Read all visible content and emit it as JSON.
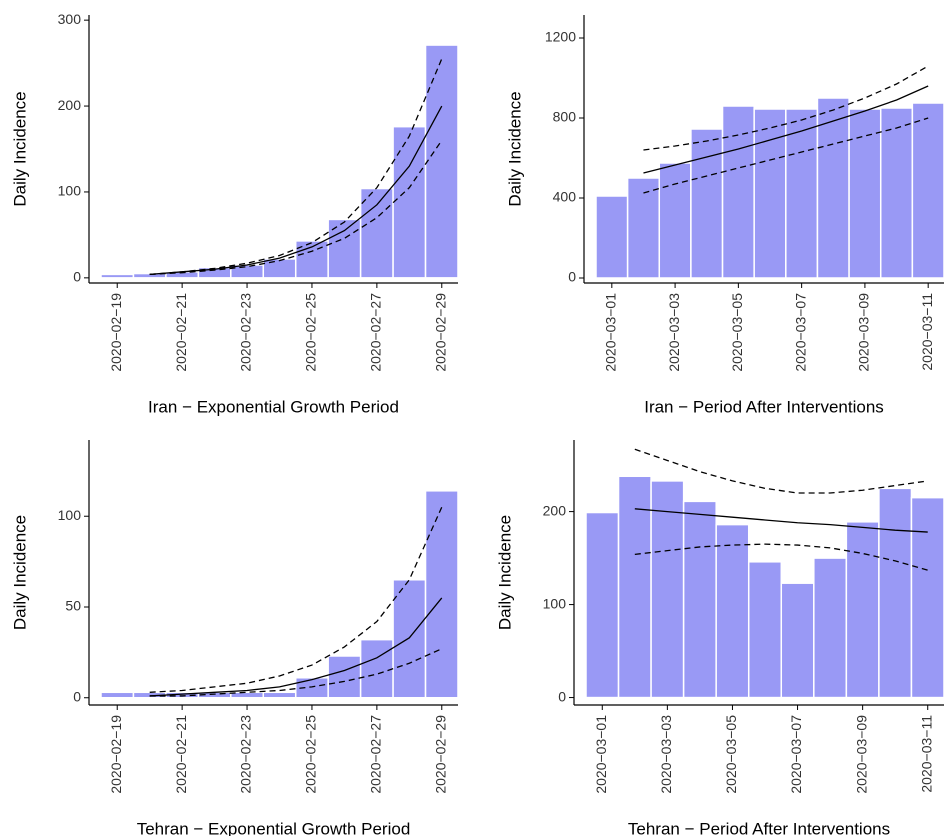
{
  "chart_data": [
    {
      "type": "bar",
      "x_label": "Iran − Exponential Growth Period",
      "y_label": "Daily Incidence",
      "categories": [
        "2020−02−19",
        null,
        "2020−02−21",
        null,
        "2020−02−23",
        null,
        "2020−02−25",
        null,
        "2020−02−27",
        null,
        "2020−02−29"
      ],
      "values": [
        4,
        5,
        7,
        12,
        15,
        22,
        43,
        68,
        104,
        176,
        271
      ],
      "color": "#9999f5",
      "lines": [
        {
          "values": [
            null,
            4,
            7,
            10,
            15,
            23,
            36,
            55,
            85,
            130,
            200
          ],
          "dashed": false
        },
        {
          "values": [
            null,
            4,
            7,
            11,
            17,
            26,
            41,
            65,
            105,
            165,
            255
          ],
          "dashed": true
        },
        {
          "values": [
            null,
            4,
            6,
            9,
            13,
            20,
            31,
            46,
            70,
            105,
            160
          ],
          "dashed": true
        }
      ],
      "ylim": [
        -6,
        306
      ],
      "yticks": [
        0,
        100,
        200,
        300
      ]
    },
    {
      "type": "bar",
      "x_label": "Iran − Period After Interventions",
      "y_label": "Daily Incidence",
      "categories": [
        "2020−03−01",
        null,
        "2020−03−03",
        null,
        "2020−03−05",
        null,
        "2020−03−07",
        null,
        "2020−03−09",
        null,
        "2020−03−11"
      ],
      "values": [
        410,
        500,
        575,
        745,
        860,
        845,
        845,
        900,
        845,
        850,
        875
      ],
      "color": "#9999f5",
      "lines": [
        {
          "values": [
            null,
            525,
            565,
            605,
            645,
            690,
            735,
            785,
            835,
            890,
            960
          ],
          "dashed": false
        },
        {
          "values": [
            null,
            640,
            660,
            685,
            715,
            750,
            790,
            840,
            900,
            970,
            1060
          ],
          "dashed": true
        },
        {
          "values": [
            null,
            425,
            470,
            510,
            550,
            590,
            630,
            670,
            710,
            750,
            800
          ],
          "dashed": true
        }
      ],
      "ylim": [
        -25,
        1315
      ],
      "yticks": [
        0,
        400,
        800,
        1200
      ]
    },
    {
      "type": "bar",
      "x_label": "Tehran − Exponential Growth Period",
      "y_label": "Daily Incidence",
      "categories": [
        "2020−02−19",
        null,
        "2020−02−21",
        null,
        "2020−02−23",
        null,
        "2020−02−25",
        null,
        "2020−02−27",
        null,
        "2020−02−29"
      ],
      "values": [
        3,
        3,
        3,
        3,
        3,
        3,
        11,
        23,
        32,
        65,
        114
      ],
      "color": "#9999f5",
      "lines": [
        {
          "values": [
            null,
            1,
            2,
            3,
            4,
            6,
            10,
            15,
            22,
            33,
            55
          ],
          "dashed": false
        },
        {
          "values": [
            null,
            3,
            4,
            6,
            8,
            12,
            18,
            28,
            42,
            65,
            105
          ],
          "dashed": true
        },
        {
          "values": [
            null,
            1,
            1,
            2,
            3,
            4,
            6,
            9,
            13,
            19,
            27
          ],
          "dashed": true
        }
      ],
      "ylim": [
        -4,
        142
      ],
      "yticks": [
        0,
        50,
        100
      ]
    },
    {
      "type": "bar",
      "x_label": "Tehran − Period After Interventions",
      "y_label": "Daily Incidence",
      "categories": [
        "2020−03−01",
        null,
        "2020−03−03",
        null,
        "2020−03−05",
        null,
        "2020−03−07",
        null,
        "2020−03−09",
        null,
        "2020−03−11"
      ],
      "values": [
        199,
        238,
        233,
        211,
        186,
        146,
        123,
        150,
        189,
        225,
        215
      ],
      "color": "#9999f5",
      "lines": [
        {
          "values": [
            null,
            203,
            200,
            197,
            194,
            191,
            188,
            186,
            183,
            180,
            178
          ],
          "dashed": false
        },
        {
          "values": [
            null,
            267,
            255,
            243,
            233,
            225,
            220,
            220,
            223,
            228,
            233
          ],
          "dashed": true
        },
        {
          "values": [
            null,
            154,
            158,
            162,
            164,
            165,
            164,
            161,
            155,
            147,
            137
          ],
          "dashed": true
        }
      ],
      "ylim": [
        -8,
        277
      ],
      "yticks": [
        0,
        100,
        200
      ]
    }
  ]
}
